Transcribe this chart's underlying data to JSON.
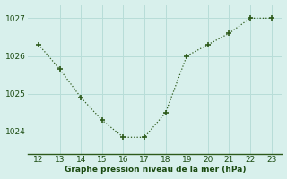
{
  "x": [
    12,
    13,
    14,
    15,
    16,
    17,
    18,
    19,
    20,
    21,
    22,
    23
  ],
  "y": [
    1026.3,
    1025.65,
    1024.9,
    1024.3,
    1023.85,
    1023.85,
    1024.5,
    1026.0,
    1026.3,
    1026.6,
    1027.0,
    1027.0
  ],
  "line_color": "#2d5a1b",
  "marker_color": "#2d5a1b",
  "bg_color": "#d8f0ec",
  "grid_color": "#b8ddd8",
  "xlabel": "Graphe pression niveau de la mer (hPa)",
  "xlabel_color": "#1a4a10",
  "tick_color": "#1a4a10",
  "ylim_min": 1023.4,
  "ylim_max": 1027.35,
  "xlim_min": 11.5,
  "xlim_max": 23.5,
  "yticks": [
    1024,
    1025,
    1026,
    1027
  ],
  "xticks": [
    12,
    13,
    14,
    15,
    16,
    17,
    18,
    19,
    20,
    21,
    22,
    23
  ],
  "figwidth": 3.2,
  "figheight": 2.0,
  "dpi": 100
}
